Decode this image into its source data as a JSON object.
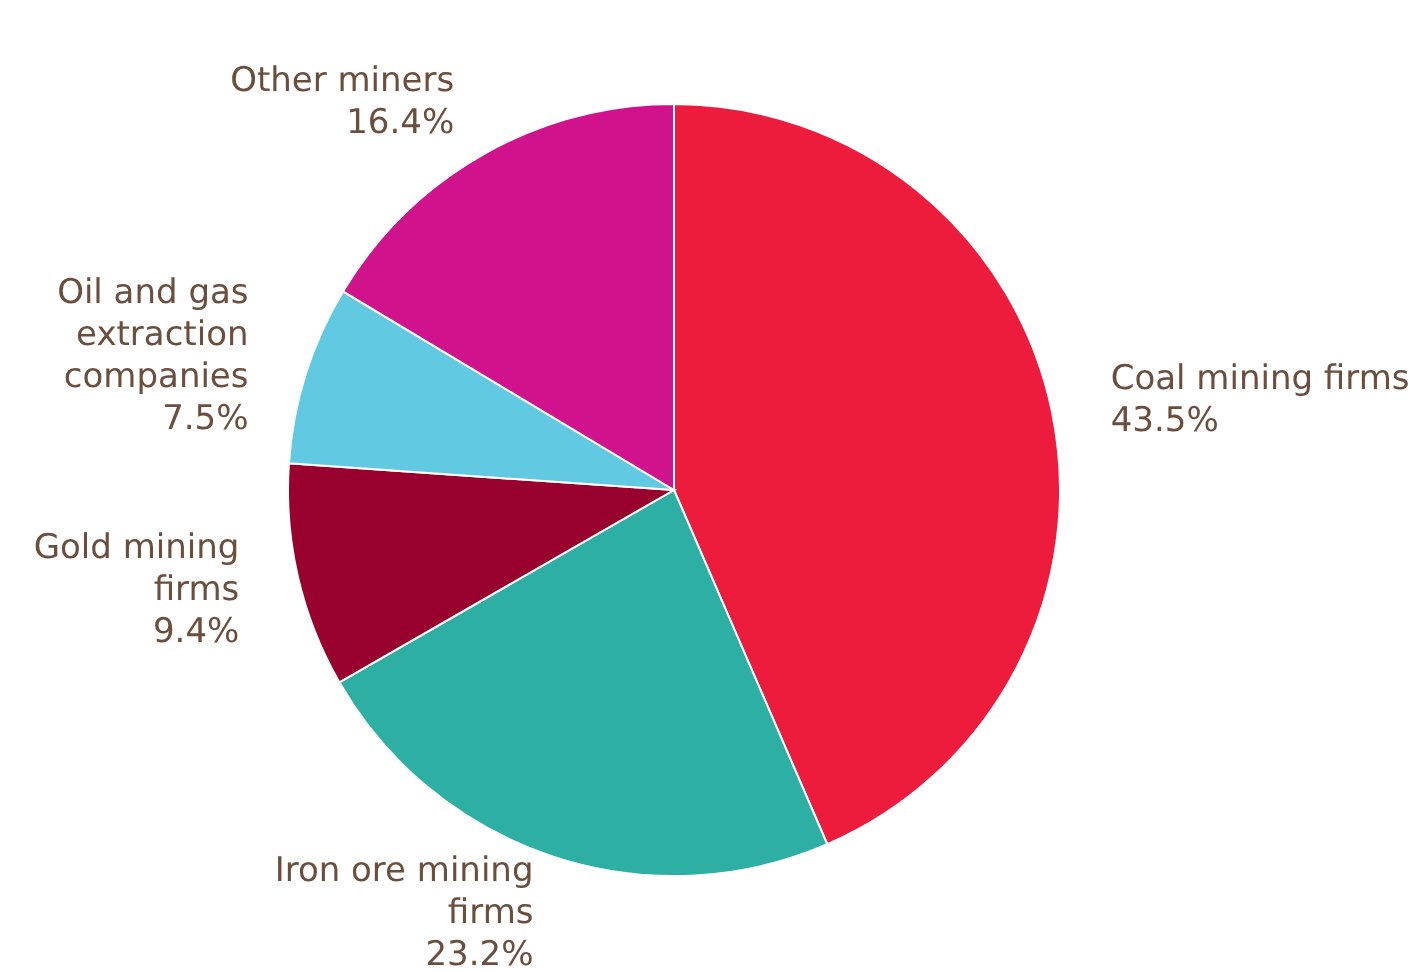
{
  "chart_data": {
    "type": "pie",
    "categories": [
      "Coal mining firms",
      "Iron ore mining firms",
      "Gold mining firms",
      "Oil and gas extraction companies",
      "Other miners"
    ],
    "values": [
      43.5,
      23.2,
      9.4,
      7.5,
      16.4
    ],
    "value_labels": [
      "43.5%",
      "23.2%",
      "9.4%",
      "7.5%",
      "16.4%"
    ],
    "colors": [
      "#ed1b3c",
      "#2db0a3",
      "#98002e",
      "#62c9e2",
      "#d0138c"
    ],
    "legend": false
  }
}
